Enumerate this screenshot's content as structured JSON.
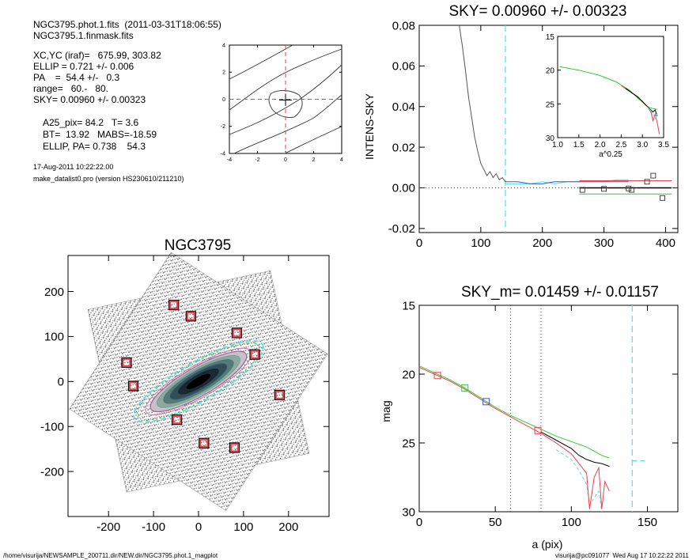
{
  "info": {
    "line1": "NGC3795.phot.1.fits  (2011-03-31T18:06:55)",
    "line2": "NGC3795.1.finmask.fits",
    "xcyc": "XC,YC (iraf)=   675.99, 303.82",
    "ellip": "ELLIP = 0.721 +/- 0.006",
    "pa": "PA    =  54.4 +/-   0.3",
    "range": "range=   60.-   80.",
    "sky": "SKY= 0.00960 +/- 0.00323",
    "a25": "A25_pix= 84.2   T= 3.6",
    "bt": "BT=  13.92   MABS=-18.59",
    "ellippa": "ELLIP, PA= 0.738    54.3",
    "date": "17-Aug-2011 10:22:22.00",
    "program": "make_datalist0.pro (version HS230610/211210)"
  },
  "footer": {
    "left": "/home/visurija/NEWSAMPLE_200711.dir/NEW.dir/NGC3795.phot.1_magplot",
    "right": "visurija@pc091077  Wed Aug 17 10:22:22 2011"
  },
  "colors": {
    "red": "#e8414b",
    "green": "#33cc33",
    "cyan": "#55ddee",
    "blue": "#3355cc",
    "black": "#000000",
    "gray": "#555555"
  },
  "chart_data": [
    {
      "id": "contour",
      "type": "contour",
      "xlim": [
        -4,
        4
      ],
      "ylim": [
        -4,
        4
      ],
      "xticks": [
        "-4",
        "-2",
        "0",
        "2",
        "4"
      ],
      "yticks": [
        "-4",
        "-2",
        "0",
        "2",
        "4"
      ],
      "center": [
        0,
        0
      ]
    },
    {
      "id": "sky",
      "type": "line",
      "title": "SKY= 0.00960 +/- 0.00323",
      "ylabel": "INTENS-SKY",
      "xlim": [
        0,
        420
      ],
      "ylim": [
        -0.022,
        0.08
      ],
      "xticks": [
        "0",
        "100",
        "200",
        "300",
        "400"
      ],
      "yticks": [
        "-0.02",
        "0.00",
        "0.02",
        "0.04",
        "0.06",
        "0.08"
      ],
      "sky_line_x": 140,
      "profile": [
        [
          65,
          0.08
        ],
        [
          70,
          0.07
        ],
        [
          75,
          0.058
        ],
        [
          80,
          0.045
        ],
        [
          85,
          0.035
        ],
        [
          90,
          0.025
        ],
        [
          95,
          0.018
        ],
        [
          100,
          0.012
        ],
        [
          105,
          0.009
        ],
        [
          110,
          0.006
        ],
        [
          115,
          0.008
        ],
        [
          120,
          0.005
        ],
        [
          125,
          0.007
        ],
        [
          130,
          0.004
        ],
        [
          135,
          0.005
        ],
        [
          140,
          0.003
        ]
      ],
      "tail_cyan": [
        [
          140,
          0.002
        ],
        [
          160,
          0.002
        ],
        [
          180,
          0.002
        ],
        [
          200,
          0.003
        ],
        [
          220,
          0.002
        ],
        [
          240,
          0.003
        ],
        [
          260,
          0.003
        ],
        [
          280,
          0.003
        ],
        [
          300,
          0.003
        ],
        [
          320,
          0.004
        ],
        [
          340,
          0.004
        ]
      ],
      "tail_blue": [
        [
          140,
          0.003
        ],
        [
          160,
          0.003
        ],
        [
          180,
          0.002
        ],
        [
          200,
          0.002
        ],
        [
          220,
          0.003
        ],
        [
          240,
          0.003
        ],
        [
          260,
          0.003
        ],
        [
          280,
          0.003
        ],
        [
          300,
          0.003
        ],
        [
          320,
          0.003
        ],
        [
          340,
          0.003
        ]
      ],
      "fit_black": [
        [
          260,
          0.0
        ],
        [
          410,
          0.0
        ]
      ],
      "fit_red": [
        [
          260,
          0.0035
        ],
        [
          410,
          0.0035
        ]
      ],
      "fit_green": [
        [
          260,
          -0.003
        ],
        [
          410,
          -0.003
        ]
      ],
      "squares": [
        [
          265,
          -0.001
        ],
        [
          300,
          -0.0005
        ],
        [
          340,
          -0.0003
        ],
        [
          345,
          -0.001
        ],
        [
          370,
          0.003
        ],
        [
          380,
          0.006
        ],
        [
          395,
          -0.005
        ]
      ],
      "inset": {
        "xlabel": "a^0.25",
        "xlim": [
          1.0,
          3.5
        ],
        "ylim": [
          15,
          30
        ],
        "xticks": [
          "1.0",
          "1.5",
          "2.0",
          "2.5",
          "3.0",
          "3.5"
        ],
        "yticks": [
          "15",
          "20",
          "25",
          "30"
        ],
        "green": [
          [
            1.05,
            19.5
          ],
          [
            1.5,
            20
          ],
          [
            2.0,
            20.8
          ],
          [
            2.4,
            21.8
          ],
          [
            2.7,
            23
          ],
          [
            2.9,
            24.2
          ],
          [
            3.05,
            25
          ],
          [
            3.15,
            25.5
          ],
          [
            3.25,
            25.7
          ],
          [
            3.35,
            25.8
          ]
        ],
        "red": [
          [
            2.5,
            22.3
          ],
          [
            2.8,
            23.6
          ],
          [
            3.0,
            24.6
          ],
          [
            3.1,
            25.3
          ],
          [
            3.2,
            26.2
          ],
          [
            3.25,
            27.5
          ],
          [
            3.3,
            26.5
          ],
          [
            3.35,
            27.8
          ],
          [
            3.4,
            29.5
          ]
        ],
        "black": [
          [
            2.6,
            22.7
          ],
          [
            2.9,
            24
          ],
          [
            3.05,
            25
          ],
          [
            3.15,
            25.6
          ],
          [
            3.25,
            26.2
          ],
          [
            3.3,
            25.9
          ],
          [
            3.35,
            26.8
          ]
        ],
        "cyan": [
          [
            3.1,
            25.4
          ],
          [
            3.2,
            26
          ],
          [
            3.3,
            27.2
          ],
          [
            3.35,
            26.4
          ]
        ]
      }
    },
    {
      "id": "image",
      "type": "image",
      "title": "NGC3795",
      "xlim": [
        -290,
        290
      ],
      "ylim": [
        -300,
        280
      ],
      "xticks": [
        "-200",
        "-100",
        "0",
        "100",
        "200"
      ],
      "yticks": [
        "-200",
        "-100",
        "0",
        "100",
        "200"
      ],
      "center": [
        0,
        0
      ],
      "ellipse": {
        "a": 84.2,
        "ellip": 0.738,
        "pa": 54.3
      },
      "mask_points": [
        [
          -55,
          170
        ],
        [
          -17,
          145
        ],
        [
          85,
          108
        ],
        [
          -160,
          42
        ],
        [
          -145,
          -10
        ],
        [
          125,
          60
        ],
        [
          180,
          -30
        ],
        [
          -48,
          -85
        ],
        [
          12,
          -137
        ],
        [
          80,
          -147
        ]
      ]
    },
    {
      "id": "mag",
      "type": "line",
      "title": "SKY_m=  0.01459 +/- 0.01157",
      "xlabel": "a (pix)",
      "ylabel": "mag",
      "xlim": [
        0,
        170
      ],
      "ylim": [
        30,
        15
      ],
      "xticks": [
        "0",
        "50",
        "100",
        "150"
      ],
      "yticks": [
        "15",
        "20",
        "25",
        "30"
      ],
      "vlines_dotted": [
        60,
        80
      ],
      "sky_line_x": 140,
      "sky_mag_segment": [
        [
          140,
          26.3
        ],
        [
          150,
          26.3
        ]
      ],
      "green": [
        [
          0,
          19.4
        ],
        [
          10,
          19.9
        ],
        [
          20,
          20.4
        ],
        [
          30,
          21
        ],
        [
          40,
          21.7
        ],
        [
          50,
          22.4
        ],
        [
          60,
          23
        ],
        [
          70,
          23.5
        ],
        [
          80,
          24
        ],
        [
          90,
          24.5
        ],
        [
          100,
          24.9
        ],
        [
          110,
          25.3
        ],
        [
          115,
          25.6
        ],
        [
          120,
          25.9
        ],
        [
          125,
          26.1
        ]
      ],
      "red": [
        [
          0,
          19.5
        ],
        [
          10,
          20
        ],
        [
          20,
          20.5
        ],
        [
          30,
          21.1
        ],
        [
          40,
          21.8
        ],
        [
          50,
          22.5
        ],
        [
          60,
          23.1
        ],
        [
          70,
          23.7
        ],
        [
          80,
          24.3
        ],
        [
          90,
          25
        ],
        [
          100,
          25.8
        ],
        [
          105,
          26.5
        ],
        [
          110,
          27.2
        ],
        [
          112,
          29.8
        ],
        [
          115,
          27.5
        ],
        [
          118,
          26.8
        ],
        [
          120,
          29.8
        ],
        [
          122,
          27.8
        ],
        [
          125,
          28.5
        ]
      ],
      "black": [
        [
          80,
          24.2
        ],
        [
          90,
          24.8
        ],
        [
          100,
          25.4
        ],
        [
          105,
          25.9
        ],
        [
          110,
          26.2
        ],
        [
          115,
          26.4
        ],
        [
          120,
          26.5
        ],
        [
          125,
          26.7
        ]
      ],
      "cyan": [
        [
          90,
          25.5
        ],
        [
          100,
          26.2
        ],
        [
          105,
          27
        ],
        [
          110,
          28
        ],
        [
          112,
          29.5
        ],
        [
          118,
          28.5
        ],
        [
          120,
          30
        ]
      ],
      "squares": [
        {
          "x": 12,
          "y": 20.1,
          "color": "red"
        },
        {
          "x": 30,
          "y": 21,
          "color": "green"
        },
        {
          "x": 44,
          "y": 22,
          "color": "blue"
        },
        {
          "x": 78,
          "y": 24.1,
          "color": "red"
        }
      ]
    }
  ]
}
